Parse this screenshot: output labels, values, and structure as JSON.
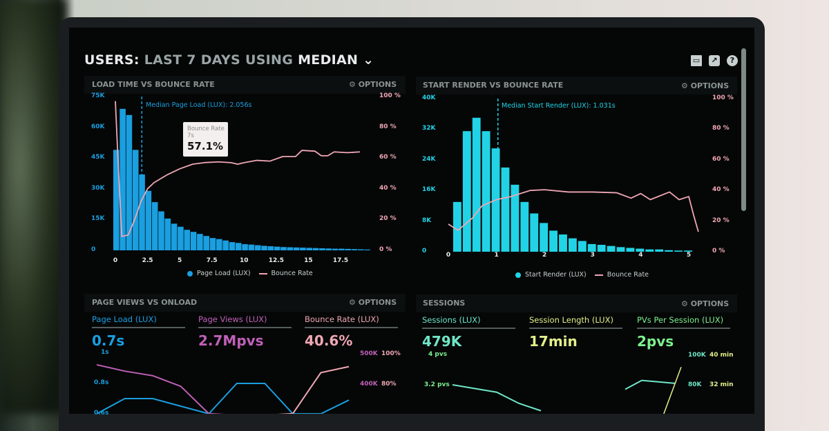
{
  "header": {
    "title_prefix": "USERS:",
    "range": "LAST 7 DAYS",
    "using": "USING",
    "stat": "MEDIAN",
    "icons": [
      "monitor-icon",
      "share-icon",
      "help-icon"
    ],
    "help_glyph": "?",
    "share_glyph": "↗"
  },
  "options_label": "⚙ OPTIONS",
  "colors": {
    "page_load": "#1a9fe0",
    "start_render": "#22d3e6",
    "bounce": "#f0a7b4",
    "page_views": "#c060b8",
    "sessions": "#6fe6c8",
    "session_length": "#e4f08a",
    "pvs": "#7ef08e"
  },
  "panels": {
    "load_time": {
      "title": "LOAD TIME VS BOUNCE RATE",
      "median_label": "Median Page Load (LUX): 2.056s",
      "tooltip": {
        "title": "Bounce Rate",
        "sub": "7s",
        "value": "57.1%"
      },
      "legend": [
        "Page Load (LUX)",
        "Bounce Rate"
      ]
    },
    "start_render": {
      "title": "START RENDER VS BOUNCE RATE",
      "median_label": "Median Start Render (LUX): 1.031s",
      "legend": [
        "Start Render (LUX)",
        "Bounce Rate"
      ]
    },
    "page_views": {
      "title": "PAGE VIEWS VS ONLOAD",
      "metrics": [
        {
          "label": "Page Load (LUX)",
          "value": "0.7s"
        },
        {
          "label": "Page Views (LUX)",
          "value": "2.7Mpvs"
        },
        {
          "label": "Bounce Rate (LUX)",
          "value": "40.6%"
        }
      ]
    },
    "sessions": {
      "title": "SESSIONS",
      "metrics": [
        {
          "label": "Sessions (LUX)",
          "value": "479K"
        },
        {
          "label": "Session Length (LUX)",
          "value": "17min"
        },
        {
          "label": "PVs Per Session (LUX)",
          "value": "2pvs"
        }
      ]
    }
  },
  "chart_data": [
    {
      "type": "bar",
      "title": "LOAD TIME VS BOUNCE RATE",
      "xlim": [
        0,
        20
      ],
      "ylim": [
        0,
        75000
      ],
      "y2lim": [
        0,
        100
      ],
      "xticks": [
        "0",
        "2.5",
        "5",
        "7.5",
        "10",
        "12.5",
        "15",
        "17.5"
      ],
      "xtick_values": [
        0,
        2.5,
        5,
        7.5,
        10,
        12.5,
        15,
        17.5
      ],
      "yticks": [
        "0",
        "15K",
        "30K",
        "45K",
        "60K",
        "75K"
      ],
      "y2ticks": [
        "0 %",
        "20 %",
        "40 %",
        "60 %",
        "80 %",
        "100 %"
      ],
      "median": 2.056,
      "bin_width": 0.5,
      "series": [
        {
          "name": "Page Load (LUX)",
          "type": "bar",
          "x": [
            0,
            0.5,
            1,
            1.5,
            2,
            2.5,
            3,
            3.5,
            4,
            4.5,
            5,
            5.5,
            6,
            6.5,
            7,
            7.5,
            8,
            8.5,
            9,
            9.5,
            10,
            10.5,
            11,
            11.5,
            12,
            12.5,
            13,
            13.5,
            14,
            14.5,
            15,
            15.5,
            16,
            16.5,
            17,
            17.5,
            18,
            18.5,
            19,
            19.5
          ],
          "values": [
            49000,
            69000,
            66000,
            49000,
            37000,
            29000,
            23500,
            19000,
            15500,
            13000,
            11500,
            10000,
            9000,
            8000,
            7000,
            6000,
            5500,
            4800,
            4000,
            3600,
            3000,
            2800,
            2500,
            2200,
            2000,
            1800,
            1600,
            1500,
            1400,
            1300,
            1200,
            1100,
            1000,
            900,
            800,
            800,
            700,
            600,
            500,
            400
          ]
        },
        {
          "name": "Bounce Rate",
          "type": "line",
          "x": [
            0,
            0.2,
            0.5,
            1,
            1.5,
            2,
            2.5,
            3,
            4,
            5,
            6,
            7,
            8,
            9,
            9.5,
            10,
            11,
            12,
            13,
            14,
            14.5,
            15.5,
            16,
            16.5,
            17,
            18,
            19
          ],
          "values": [
            97,
            60,
            9,
            10,
            20,
            32,
            40,
            44,
            49,
            53,
            56,
            57.1,
            57.5,
            57,
            56,
            57,
            58.5,
            58,
            61,
            61,
            65,
            64.5,
            61.5,
            61.5,
            64,
            63.5,
            64
          ]
        }
      ]
    },
    {
      "type": "bar",
      "title": "START RENDER VS BOUNCE RATE",
      "xlim": [
        0,
        5.3
      ],
      "ylim": [
        0,
        40000
      ],
      "y2lim": [
        0,
        100
      ],
      "xticks": [
        "0",
        "1",
        "2",
        "3",
        "4",
        "5"
      ],
      "xtick_values": [
        0,
        1,
        2,
        3,
        4,
        5
      ],
      "yticks": [
        "0",
        "8K",
        "16K",
        "24K",
        "32K",
        "40K"
      ],
      "y2ticks": [
        "0 %",
        "20 %",
        "40 %",
        "60 %",
        "80 %",
        "100 %"
      ],
      "median": 1.031,
      "bin_width": 0.2,
      "series": [
        {
          "name": "Start Render (LUX)",
          "type": "bar",
          "x": [
            0.1,
            0.3,
            0.5,
            0.7,
            0.9,
            1.1,
            1.3,
            1.5,
            1.7,
            1.9,
            2.1,
            2.3,
            2.5,
            2.7,
            2.9,
            3.1,
            3.3,
            3.5,
            3.7,
            3.9,
            4.1,
            4.3,
            4.5,
            4.7,
            4.9
          ],
          "values": [
            13000,
            31500,
            35000,
            31500,
            27000,
            22000,
            17500,
            13000,
            10000,
            7500,
            5500,
            4500,
            3500,
            2800,
            2000,
            1800,
            1500,
            1200,
            1000,
            800,
            600,
            600,
            400,
            300,
            300
          ]
        },
        {
          "name": "Bounce Rate",
          "type": "line",
          "x": [
            0,
            0.2,
            0.5,
            0.7,
            1,
            1.3,
            1.5,
            1.7,
            2,
            2.5,
            3,
            3.5,
            3.8,
            4,
            4.2,
            4.6,
            4.8,
            5,
            5.1,
            5.2
          ],
          "values": [
            18,
            14,
            22,
            30,
            34,
            36,
            38,
            40,
            40.5,
            39,
            39,
            38.5,
            35,
            38,
            34,
            39,
            34,
            36,
            24,
            13
          ]
        }
      ]
    },
    {
      "type": "line",
      "title": "PAGE VIEWS VS ONLOAD",
      "yticks": [
        "0.6s",
        "0.8s",
        "1s"
      ],
      "y2ticks": [
        "500K",
        "400K"
      ],
      "y3ticks": [
        "100%",
        "80%"
      ],
      "series": [
        {
          "name": "Page Load (LUX)",
          "axis": "left",
          "values": [
            0.6,
            0.7,
            0.7,
            0.65,
            0.6,
            0.8,
            0.8,
            0.6,
            0.6,
            0.69
          ]
        },
        {
          "name": "Page Views (LUX)",
          "axis": "right",
          "values": [
            466,
            445,
            430,
            395,
            305,
            300,
            300,
            300,
            300,
            300
          ]
        },
        {
          "name": "Bounce Rate (LUX)",
          "axis": "right2",
          "values": [
            60,
            60,
            60,
            60,
            60,
            60,
            60,
            61,
            88,
            92
          ]
        }
      ]
    },
    {
      "type": "line",
      "title": "SESSIONS",
      "yticks": [
        "3.2 pvs",
        "4 pvs"
      ],
      "y2ticks": [
        "80K",
        "100K"
      ],
      "y3ticks": [
        "32 min",
        "40 min"
      ],
      "series": [
        {
          "name": "PVs Per Session (LUX)",
          "values": [
            3.2,
            3.1,
            3.0,
            2.7,
            2.5
          ]
        },
        {
          "name": "Sessions (LUX)",
          "values": [
            70,
            76,
            75,
            74
          ]
        },
        {
          "name": "Session Length (LUX)",
          "values": [
            20,
            34
          ]
        }
      ]
    }
  ]
}
